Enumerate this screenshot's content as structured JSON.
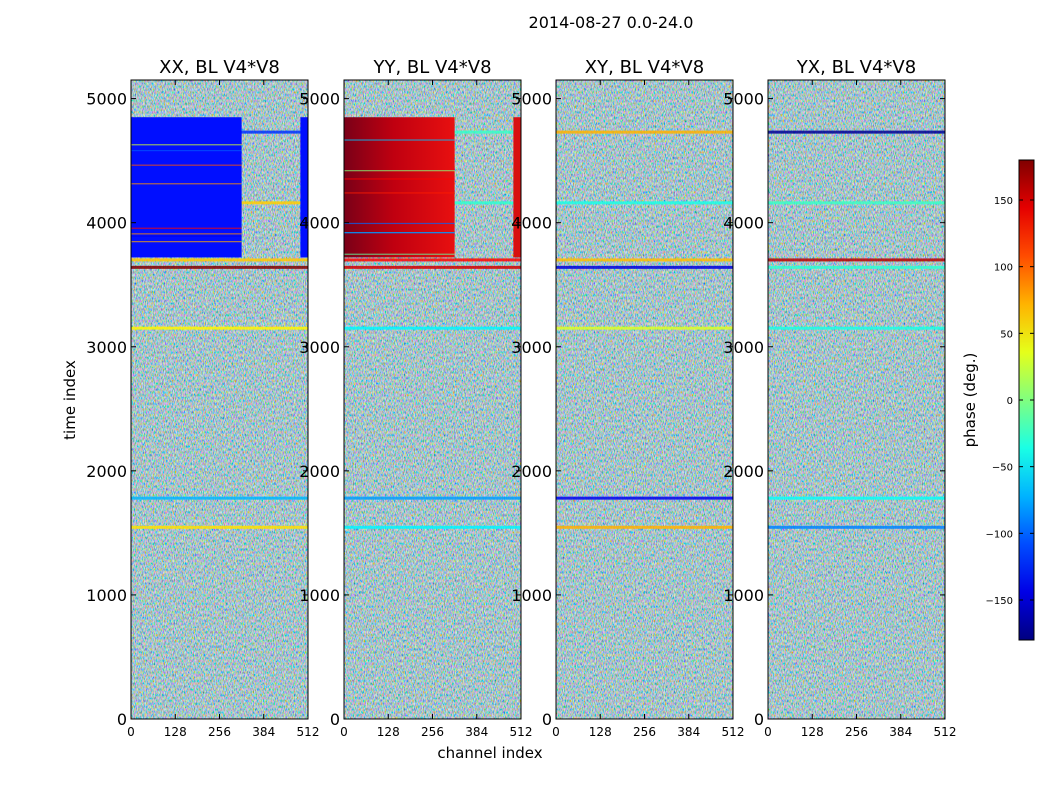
{
  "figure": {
    "suptitle": "2014-08-27 0.0-24.0"
  },
  "chart_data": {
    "type": "heatmap",
    "xlabel": "channel index",
    "ylabel": "time index",
    "xlim": [
      0,
      512
    ],
    "ylim": [
      0,
      5150
    ],
    "xticks": [
      0,
      128,
      256,
      384,
      512
    ],
    "yticks": [
      0,
      1000,
      2000,
      3000,
      4000,
      5000
    ],
    "panels": [
      {
        "title": "XX, BL V4*V8",
        "show_yticks": true,
        "show_xlabel": false,
        "description": "mostly noisy phase; strong uniform blue (~ -130 deg) block for time index ~3720-4850, channels 0-320 and 490-512"
      },
      {
        "title": "YY, BL V4*V8",
        "show_yticks": true,
        "show_xlabel": true,
        "description": "mostly noisy phase; strong dark-red/red block for time index ~3720-4850, channels 0-320 and 490-512"
      },
      {
        "title": "XY, BL V4*V8",
        "show_yticks": true,
        "show_xlabel": false,
        "description": "noisy phase throughout with horizontal band features"
      },
      {
        "title": "YX, BL V4*V8",
        "show_yticks": true,
        "show_xlabel": false,
        "description": "noisy phase throughout with horizontal band features"
      }
    ],
    "colorbar": {
      "label": "phase (deg.)",
      "range": [
        -180,
        180
      ],
      "ticks": [
        -150,
        -100,
        -50,
        0,
        50,
        100,
        150
      ],
      "tick_labels": [
        "−150",
        "−100",
        "−50",
        "0",
        "50",
        "100",
        "150"
      ],
      "colormap": "jet"
    }
  }
}
